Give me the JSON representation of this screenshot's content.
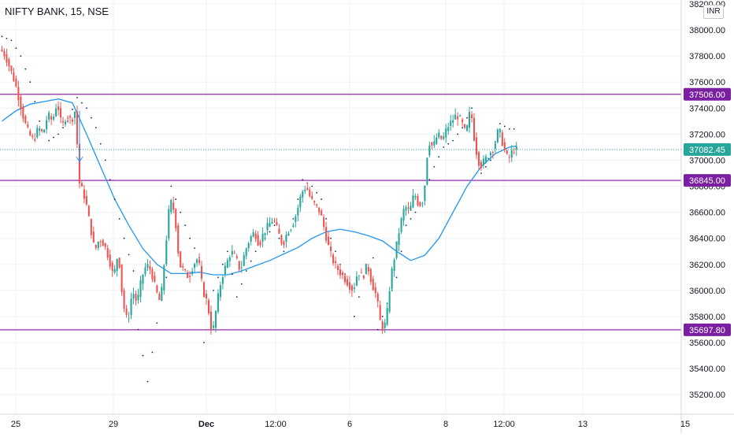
{
  "header": {
    "symbol_label": "NIFTY BANK, 15, NSE",
    "currency_label": "INR"
  },
  "chart_data": {
    "type": "candlestick",
    "title": "NIFTY BANK, 15, NSE",
    "ylim": [
      35050,
      38230
    ],
    "y_ticks": [
      {
        "value": 38200,
        "label": "38200.00"
      },
      {
        "value": 38000,
        "label": "38000.00"
      },
      {
        "value": 37800,
        "label": "37800.00"
      },
      {
        "value": 37600,
        "label": "37600.00"
      },
      {
        "value": 37400,
        "label": "37400.00"
      },
      {
        "value": 37200,
        "label": "37200.00"
      },
      {
        "value": 37000,
        "label": "37000.00"
      },
      {
        "value": 36800,
        "label": "36800.00"
      },
      {
        "value": 36600,
        "label": "36600.00"
      },
      {
        "value": 36400,
        "label": "36400.00"
      },
      {
        "value": 36200,
        "label": "36200.00"
      },
      {
        "value": 36000,
        "label": "36000.00"
      },
      {
        "value": 35800,
        "label": "35800.00"
      },
      {
        "value": 35600,
        "label": "35600.00"
      },
      {
        "value": 35400,
        "label": "35400.00"
      },
      {
        "value": 35200,
        "label": "35200.00"
      }
    ],
    "x_labels": [
      "25",
      "29",
      "Dec",
      "12:00",
      "6",
      "8",
      "12:00",
      "13",
      "15"
    ],
    "horizontal_levels": [
      {
        "value": 37506.0,
        "label": "37506.00"
      },
      {
        "value": 36845.0,
        "label": "36845.00"
      },
      {
        "value": 35697.8,
        "label": "35697.80"
      }
    ],
    "last_price": {
      "value": 37082.45,
      "label": "37082.45"
    },
    "colors": {
      "up": "#26a69a",
      "down": "#ef5350",
      "moving_average": "#2196f3",
      "parabolic_sar": "#0d2a5c",
      "level_line": "#9c27b0",
      "level_tag": "#7b1fa2",
      "last_price_tag": "#26a69a",
      "grid": "#eef0f3"
    },
    "price_path": [
      [
        0,
        37850
      ],
      [
        2,
        37800
      ],
      [
        4,
        37700
      ],
      [
        6,
        37600
      ],
      [
        8,
        37450
      ],
      [
        10,
        37300
      ],
      [
        12,
        37200
      ],
      [
        14,
        37150
      ],
      [
        16,
        37250
      ],
      [
        18,
        37200
      ],
      [
        20,
        37350
      ],
      [
        22,
        37300
      ],
      [
        24,
        37450
      ],
      [
        26,
        37250
      ],
      [
        28,
        37350
      ],
      [
        30,
        37300
      ],
      [
        32,
        37400
      ],
      [
        33,
        36850
      ],
      [
        34,
        36800
      ],
      [
        36,
        36700
      ],
      [
        38,
        36500
      ],
      [
        40,
        36300
      ],
      [
        42,
        36400
      ],
      [
        44,
        36350
      ],
      [
        46,
        36250
      ],
      [
        48,
        36100
      ],
      [
        50,
        36300
      ],
      [
        52,
        35900
      ],
      [
        54,
        35750
      ],
      [
        56,
        36000
      ],
      [
        58,
        35900
      ],
      [
        60,
        36100
      ],
      [
        62,
        36200
      ],
      [
        64,
        36150
      ],
      [
        66,
        36000
      ],
      [
        68,
        35900
      ],
      [
        70,
        36300
      ],
      [
        72,
        36700
      ],
      [
        74,
        36600
      ],
      [
        76,
        36200
      ],
      [
        78,
        36150
      ],
      [
        80,
        36100
      ],
      [
        82,
        36200
      ],
      [
        84,
        36250
      ],
      [
        86,
        36000
      ],
      [
        88,
        35900
      ],
      [
        90,
        35650
      ],
      [
        92,
        35900
      ],
      [
        94,
        36100
      ],
      [
        96,
        36200
      ],
      [
        98,
        36300
      ],
      [
        100,
        36250
      ],
      [
        102,
        36150
      ],
      [
        104,
        36300
      ],
      [
        106,
        36400
      ],
      [
        108,
        36450
      ],
      [
        110,
        36350
      ],
      [
        112,
        36450
      ],
      [
        114,
        36500
      ],
      [
        116,
        36550
      ],
      [
        118,
        36450
      ],
      [
        120,
        36350
      ],
      [
        122,
        36450
      ],
      [
        124,
        36500
      ],
      [
        126,
        36600
      ],
      [
        128,
        36750
      ],
      [
        130,
        36800
      ],
      [
        132,
        36700
      ],
      [
        134,
        36650
      ],
      [
        136,
        36600
      ],
      [
        138,
        36450
      ],
      [
        140,
        36300
      ],
      [
        142,
        36200
      ],
      [
        144,
        36150
      ],
      [
        146,
        36100
      ],
      [
        148,
        36050
      ],
      [
        150,
        36000
      ],
      [
        152,
        36150
      ],
      [
        154,
        36100
      ],
      [
        156,
        36200
      ],
      [
        158,
        36050
      ],
      [
        160,
        35950
      ],
      [
        162,
        35700
      ],
      [
        164,
        35750
      ],
      [
        166,
        36100
      ],
      [
        168,
        36300
      ],
      [
        170,
        36500
      ],
      [
        172,
        36650
      ],
      [
        174,
        36600
      ],
      [
        176,
        36750
      ],
      [
        178,
        36650
      ],
      [
        180,
        36700
      ],
      [
        182,
        37150
      ],
      [
        184,
        37100
      ],
      [
        186,
        37200
      ],
      [
        188,
        37150
      ],
      [
        190,
        37250
      ],
      [
        192,
        37300
      ],
      [
        194,
        37350
      ],
      [
        196,
        37300
      ],
      [
        198,
        37200
      ],
      [
        200,
        37400
      ],
      [
        202,
        37100
      ],
      [
        204,
        36950
      ],
      [
        206,
        37000
      ],
      [
        208,
        37050
      ],
      [
        210,
        37100
      ],
      [
        212,
        37250
      ],
      [
        214,
        37100
      ],
      [
        216,
        37000
      ],
      [
        218,
        37080
      ],
      [
        219,
        37082.45
      ]
    ],
    "moving_average_path": [
      [
        0,
        37300
      ],
      [
        6,
        37380
      ],
      [
        12,
        37430
      ],
      [
        18,
        37450
      ],
      [
        24,
        37470
      ],
      [
        30,
        37440
      ],
      [
        36,
        37200
      ],
      [
        42,
        36950
      ],
      [
        48,
        36700
      ],
      [
        54,
        36500
      ],
      [
        60,
        36320
      ],
      [
        66,
        36200
      ],
      [
        72,
        36130
      ],
      [
        78,
        36130
      ],
      [
        84,
        36140
      ],
      [
        90,
        36120
      ],
      [
        96,
        36120
      ],
      [
        102,
        36150
      ],
      [
        108,
        36190
      ],
      [
        114,
        36230
      ],
      [
        120,
        36280
      ],
      [
        126,
        36330
      ],
      [
        132,
        36400
      ],
      [
        138,
        36450
      ],
      [
        144,
        36470
      ],
      [
        150,
        36450
      ],
      [
        156,
        36420
      ],
      [
        162,
        36380
      ],
      [
        168,
        36300
      ],
      [
        174,
        36230
      ],
      [
        180,
        36270
      ],
      [
        186,
        36400
      ],
      [
        192,
        36600
      ],
      [
        198,
        36800
      ],
      [
        204,
        36950
      ],
      [
        210,
        37050
      ],
      [
        216,
        37100
      ],
      [
        219,
        37110
      ]
    ],
    "sar_path": [
      [
        0,
        37950
      ],
      [
        4,
        37920
      ],
      [
        8,
        37800
      ],
      [
        12,
        37600
      ],
      [
        16,
        37300
      ],
      [
        20,
        37150
      ],
      [
        24,
        37200
      ],
      [
        28,
        37300
      ],
      [
        32,
        37480
      ],
      [
        36,
        37400
      ],
      [
        40,
        37250
      ],
      [
        44,
        37000
      ],
      [
        48,
        36700
      ],
      [
        52,
        36400
      ],
      [
        56,
        36150
      ],
      [
        58,
        35700
      ],
      [
        60,
        35500
      ],
      [
        62,
        35300
      ],
      [
        66,
        35750
      ],
      [
        70,
        36100
      ],
      [
        72,
        36800
      ],
      [
        76,
        36600
      ],
      [
        80,
        36400
      ],
      [
        84,
        36250
      ],
      [
        86,
        35600
      ],
      [
        88,
        35900
      ],
      [
        92,
        36100
      ],
      [
        96,
        36300
      ],
      [
        100,
        35950
      ],
      [
        104,
        36150
      ],
      [
        108,
        36300
      ],
      [
        112,
        36400
      ],
      [
        116,
        36500
      ],
      [
        120,
        36300
      ],
      [
        124,
        36550
      ],
      [
        128,
        36850
      ],
      [
        132,
        36800
      ],
      [
        136,
        36700
      ],
      [
        140,
        36400
      ],
      [
        144,
        36200
      ],
      [
        148,
        36050
      ],
      [
        150,
        35800
      ],
      [
        154,
        36100
      ],
      [
        158,
        36250
      ],
      [
        160,
        35700
      ],
      [
        164,
        35900
      ],
      [
        168,
        36100
      ],
      [
        172,
        36500
      ],
      [
        176,
        36600
      ],
      [
        180,
        36750
      ],
      [
        184,
        36950
      ],
      [
        188,
        37100
      ],
      [
        192,
        37150
      ],
      [
        196,
        37250
      ],
      [
        200,
        37400
      ],
      [
        204,
        36900
      ],
      [
        208,
        37000
      ],
      [
        212,
        37280
      ],
      [
        216,
        37240
      ]
    ],
    "annotation_arrow": {
      "from": [
        33,
        37380
      ],
      "to": [
        33,
        36990
      ]
    }
  }
}
